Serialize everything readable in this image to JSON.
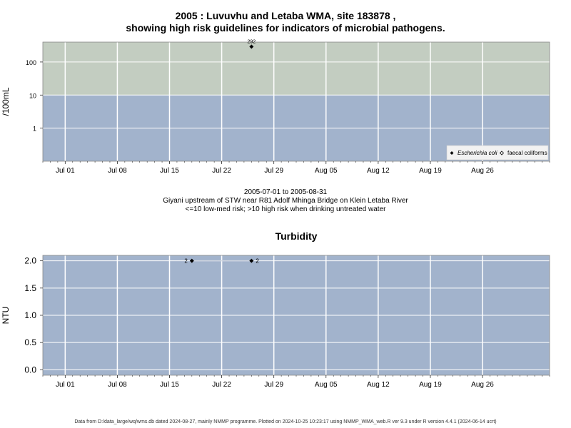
{
  "title_line1": "2005 : Luvuvhu and Letaba WMA, site 183878 ,",
  "title_line2": "showing high risk guidelines for indicators of microbial pathogens.",
  "subtitle_line1": "2005-07-01 to 2005-08-31",
  "subtitle_line2": "Giyani upstream of STW near R81 Adolf Mhinga Bridge on Klein Letaba River",
  "subtitle_line3": "<=10 low-med risk; >10 high risk when drinking untreated water",
  "footer": "Data from D:/data_large/wq/wms.db dated 2024-08-27, mainly NMMP programme. Plotted on 2024-10-25 10:23:17 using NMMP_WMA_web.R ver 9.3 under R version 4.4.1 (2024-06-14 ucrt)",
  "colors": {
    "low_risk": "#a2b3cc",
    "high_risk": "#c3cdc1",
    "plot_bg": "#a2b3cc",
    "grid": "#ffffff",
    "series": "#000000"
  },
  "chart_data": [
    {
      "type": "scatter",
      "title": "",
      "ylabel": "/100mL",
      "xlabel": "",
      "y_scale": "log",
      "xlim": [
        "2005-06-28",
        "2005-09-04"
      ],
      "ylim": [
        0.1,
        400
      ],
      "x_ticks": [
        "Jul 01",
        "Jul 08",
        "Jul 15",
        "Jul 22",
        "Jul 29",
        "Aug 05",
        "Aug 12",
        "Aug 19",
        "Aug 26"
      ],
      "x_tick_dates": [
        "2005-07-01",
        "2005-07-08",
        "2005-07-15",
        "2005-07-22",
        "2005-07-29",
        "2005-08-05",
        "2005-08-12",
        "2005-08-19",
        "2005-08-26"
      ],
      "y_ticks": [
        "1",
        "10",
        "100"
      ],
      "y_tick_values": [
        1,
        10,
        100
      ],
      "bands": [
        {
          "label": "low-med risk",
          "from": 0.1,
          "to": 10,
          "color": "#a2b3cc"
        },
        {
          "label": "high risk",
          "from": 10,
          "to": 400,
          "color": "#c3cdc1"
        }
      ],
      "legend_position": "bottom-right",
      "series": [
        {
          "name": "Escherichia coli",
          "marker": "filled-diamond",
          "points": [
            {
              "x": "2005-07-26",
              "y": 292,
              "label": "292"
            }
          ]
        },
        {
          "name": "faecal coliforms",
          "marker": "open-diamond",
          "points": []
        }
      ]
    },
    {
      "type": "line",
      "title": "Turbidity",
      "ylabel": "NTU",
      "xlabel": "",
      "y_scale": "linear",
      "xlim": [
        "2005-06-28",
        "2005-09-04"
      ],
      "ylim": [
        -0.1,
        2.1
      ],
      "x_ticks": [
        "Jul 01",
        "Jul 08",
        "Jul 15",
        "Jul 22",
        "Jul 29",
        "Aug 05",
        "Aug 12",
        "Aug 19",
        "Aug 26"
      ],
      "x_tick_dates": [
        "2005-07-01",
        "2005-07-08",
        "2005-07-15",
        "2005-07-22",
        "2005-07-29",
        "2005-08-05",
        "2005-08-12",
        "2005-08-19",
        "2005-08-26"
      ],
      "y_ticks": [
        "0.0",
        "0.5",
        "1.0",
        "1.5",
        "2.0"
      ],
      "y_tick_values": [
        0,
        0.5,
        1.0,
        1.5,
        2.0
      ],
      "series": [
        {
          "name": "",
          "points": [
            {
              "x": "2005-07-18",
              "y": 2,
              "label": "2"
            },
            {
              "x": "2005-07-26",
              "y": 2,
              "label": "2"
            }
          ]
        }
      ]
    }
  ]
}
